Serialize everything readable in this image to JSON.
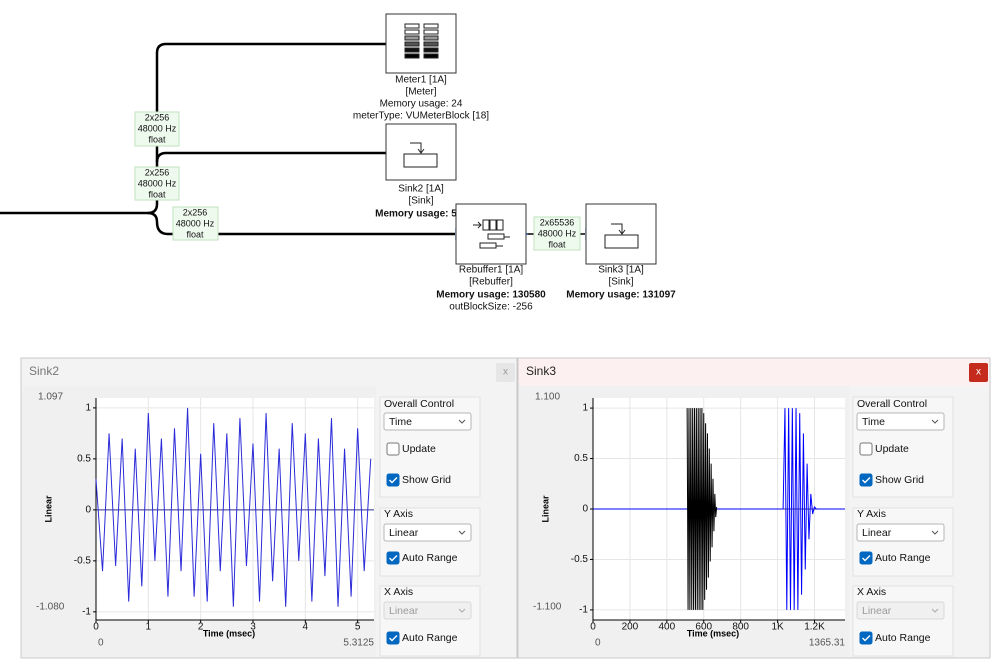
{
  "diagram": {
    "blocks": [
      {
        "name": "Meter1 [1A]",
        "kind": "[Meter]",
        "memory": "Memory usage: 24",
        "extra": "meterType: VUMeterBlock [18]"
      },
      {
        "name": "Sink2 [1A]",
        "kind": "[Sink]",
        "memory": "Memory usage: 5"
      },
      {
        "name": "Rebuffer1 [1A]",
        "kind": "[Rebuffer]",
        "memory": "Memory usage: 130580",
        "extra": "outBlockSize: -256"
      },
      {
        "name": "Sink3 [1A]",
        "kind": "[Sink]",
        "memory": "Memory usage: 131097"
      }
    ],
    "links": [
      {
        "shape": "2x256",
        "rate": "48000 Hz",
        "format": "float"
      },
      {
        "shape": "2x256",
        "rate": "48000 Hz",
        "format": "float"
      },
      {
        "shape": "2x256",
        "rate": "48000 Hz",
        "format": "float"
      },
      {
        "shape": "2x65536",
        "rate": "48000 Hz",
        "format": "float"
      }
    ]
  },
  "windows": [
    {
      "title": "Sink2",
      "close": "x",
      "chart": {
        "type": "line",
        "x_label": "Time (msec)",
        "y_label": "Linear",
        "xlim": [
          0,
          5.3125
        ],
        "ylim": [
          {
            "value": -1.08,
            "label": "-1.080"
          },
          1.097
        ],
        "xticks": [
          0,
          1,
          2,
          3,
          4,
          5
        ],
        "yticks": [
          -1,
          -0.5,
          0,
          0.5,
          1
        ],
        "series": [
          {
            "color": "#2b2bd9",
            "x": [
              0,
              0.125,
              0.25,
              0.375,
              0.5,
              0.625,
              0.75,
              0.875,
              1,
              1.125,
              1.25,
              1.375,
              1.5,
              1.625,
              1.75,
              1.875,
              2,
              2.125,
              2.25,
              2.375,
              2.5,
              2.625,
              2.75,
              2.875,
              3,
              3.125,
              3.25,
              3.375,
              3.5,
              3.625,
              3.75,
              3.875,
              4,
              4.125,
              4.25,
              4.375,
              4.5,
              4.625,
              4.75,
              4.875,
              5,
              5.125,
              5.25
            ],
            "values": [
              0.3,
              -0.6,
              0.75,
              -0.55,
              0.7,
              -0.9,
              0.6,
              -0.75,
              0.95,
              -0.5,
              0.7,
              -0.85,
              0.8,
              -0.6,
              1.0,
              -0.85,
              0.55,
              -0.9,
              0.85,
              -0.6,
              0.75,
              -0.95,
              0.9,
              -0.55,
              0.65,
              -0.9,
              0.95,
              -0.7,
              0.6,
              -0.95,
              0.85,
              -0.5,
              0.75,
              -0.9,
              0.7,
              -0.65,
              0.9,
              -0.95,
              0.6,
              -0.85,
              0.8,
              -0.6,
              0.5
            ]
          }
        ]
      },
      "controls": {
        "overall_control": "Overall Control",
        "mode": "Time",
        "update": {
          "label": "Update",
          "checked": false
        },
        "show_grid": {
          "label": "Show Grid",
          "checked": true
        },
        "y_axis": "Y Axis",
        "y_scale": "Linear",
        "y_auto_range": {
          "label": "Auto Range",
          "checked": true
        },
        "x_axis": "X Axis",
        "x_scale": "Linear",
        "x_scale_disabled": true,
        "x_auto_range": {
          "label": "Auto Range",
          "checked": true
        }
      }
    },
    {
      "title": "Sink3",
      "close": "x",
      "chart": {
        "type": "line",
        "x_label": "Time (msec)",
        "y_label": "Linear",
        "xlim": [
          0,
          1365.31
        ],
        "ylim": [
          {
            "value": -1.1,
            "label": "-1.100"
          },
          {
            "value": 1.1,
            "label": "1.100"
          }
        ],
        "xticks": [
          0,
          200,
          400,
          600,
          800,
          {
            "value": 1000,
            "label": "1K"
          },
          {
            "value": 1200,
            "label": "1.2K"
          }
        ],
        "yticks": [
          -1,
          -0.5,
          0,
          0.5,
          1
        ],
        "series": [
          {
            "color": "#0000ff",
            "x": [
              0,
              1030,
              1040,
              1050,
              1060,
              1070,
              1080,
              1090,
              1100,
              1110,
              1120,
              1130,
              1140,
              1150,
              1160,
              1170,
              1180,
              1190,
              1200,
              1210,
              1365.31
            ],
            "values": [
              0,
              0,
              1,
              -1,
              1,
              -1,
              1,
              -1,
              1,
              -1,
              0.95,
              -0.85,
              0.75,
              -0.6,
              0.45,
              -0.3,
              0.15,
              -0.05,
              0.02,
              0,
              0
            ]
          },
          {
            "color": "#000000",
            "x": [
              510,
              515,
              520,
              525,
              530,
              535,
              540,
              545,
              550,
              555,
              560,
              565,
              570,
              575,
              580,
              585,
              590,
              595,
              600,
              605,
              610,
              615,
              620,
              625,
              630,
              635,
              640,
              645,
              650,
              655,
              660,
              665,
              670
            ],
            "values": [
              1,
              -1,
              1,
              -1,
              1,
              -1,
              1,
              -1,
              1,
              -1,
              1,
              -1,
              1,
              -1,
              1,
              -1,
              1,
              -1,
              0.95,
              -0.9,
              0.85,
              -0.8,
              0.75,
              -0.68,
              0.6,
              -0.52,
              0.45,
              -0.38,
              0.3,
              -0.22,
              0.15,
              -0.08,
              0.02
            ]
          }
        ]
      },
      "controls": {
        "overall_control": "Overall Control",
        "mode": "Time",
        "update": {
          "label": "Update",
          "checked": false
        },
        "show_grid": {
          "label": "Show Grid",
          "checked": true
        },
        "y_axis": "Y Axis",
        "y_scale": "Linear",
        "y_auto_range": {
          "label": "Auto Range",
          "checked": true
        },
        "x_axis": "X Axis",
        "x_scale": "Linear",
        "x_scale_disabled": true,
        "x_auto_range": {
          "label": "Auto Range",
          "checked": true
        }
      }
    }
  ]
}
